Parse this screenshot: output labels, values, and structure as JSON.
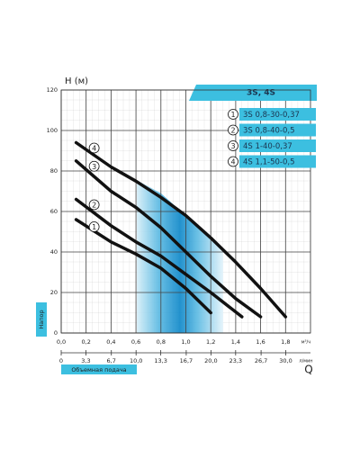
{
  "chart_data": {
    "type": "line",
    "title": "3S, 4S",
    "y_label": "H (м)",
    "y_axis_title": "Напор",
    "x_axis_title": "Объемная подача",
    "x_symbol": "Q",
    "x_unit": "м³/ч",
    "x2_unit": "л/мин",
    "xlim": [
      0,
      2
    ],
    "ylim": [
      0,
      120
    ],
    "x2lim": [
      0,
      33.3
    ],
    "xticks": [
      {
        "value": 0,
        "label": "0,0"
      },
      {
        "value": 0.2,
        "label": "0,2"
      },
      {
        "value": 0.4,
        "label": "0,4"
      },
      {
        "value": 0.6,
        "label": "0,6"
      },
      {
        "value": 0.8,
        "label": "0,8"
      },
      {
        "value": 1.0,
        "label": "1,0"
      },
      {
        "value": 1.2,
        "label": "1,2"
      },
      {
        "value": 1.4,
        "label": "1,4"
      },
      {
        "value": 1.6,
        "label": "1,6"
      },
      {
        "value": 1.8,
        "label": "1,8"
      }
    ],
    "x2ticks": [
      0,
      {
        "value": 3.3,
        "label": "3,3"
      },
      {
        "value": 6.7,
        "label": "6,7"
      },
      {
        "value": 10.0,
        "label": "10,0"
      },
      {
        "value": 13.3,
        "label": "13,3"
      },
      {
        "value": 16.7,
        "label": "16,7"
      },
      {
        "value": 20.0,
        "label": "20,0"
      },
      {
        "value": 23.3,
        "label": "23,3"
      },
      {
        "value": 26.7,
        "label": "26,7"
      },
      {
        "value": 30.0,
        "label": "30,0"
      }
    ],
    "yticks": [
      0,
      20,
      40,
      60,
      80,
      100,
      120
    ],
    "grid": true,
    "series": [
      {
        "number": "1",
        "name": "3S 0,8-30-0,37",
        "color": "#111",
        "x": [
          0.12,
          0.4,
          0.6,
          0.8,
          1.0,
          1.2
        ],
        "values": [
          56,
          45,
          39,
          32,
          22,
          10
        ]
      },
      {
        "number": "2",
        "name": "3S 0,8-40-0,5",
        "color": "#111",
        "x": [
          0.12,
          0.4,
          0.6,
          0.8,
          1.0,
          1.2,
          1.45
        ],
        "values": [
          66,
          53,
          45,
          38,
          29,
          20,
          8
        ]
      },
      {
        "number": "3",
        "name": "4S 1-40-0,37",
        "color": "#111",
        "x": [
          0.12,
          0.4,
          0.6,
          0.8,
          1.0,
          1.2,
          1.4,
          1.6
        ],
        "values": [
          85,
          70,
          62,
          52,
          40,
          28,
          17,
          8
        ]
      },
      {
        "number": "4",
        "name": "4S 1,1-50-0,5",
        "color": "#111",
        "x": [
          0.12,
          0.4,
          0.6,
          0.8,
          1.0,
          1.2,
          1.4,
          1.6,
          1.8
        ],
        "values": [
          94,
          82,
          75,
          67,
          58,
          47,
          35,
          22,
          8
        ]
      }
    ]
  }
}
